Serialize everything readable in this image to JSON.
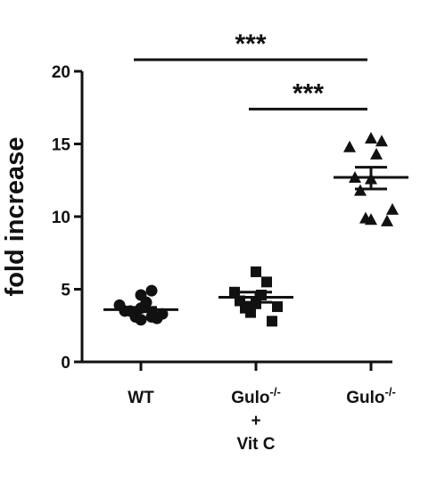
{
  "chart_data": {
    "type": "scatter",
    "ylabel": "fold increase",
    "ylim": [
      0,
      20
    ],
    "yticks": [
      0,
      5,
      10,
      15,
      20
    ],
    "categories": [
      {
        "lines": [
          "WT"
        ],
        "sup": ""
      },
      {
        "lines": [
          "Gulo",
          "+",
          "Vit C"
        ],
        "sup": "-/-"
      },
      {
        "lines": [
          "Gulo"
        ],
        "sup": "-/-"
      }
    ],
    "series": [
      {
        "category_index": 0,
        "marker": "circle",
        "values": [
          4.6,
          4.9,
          3.9,
          4.1,
          3.5,
          3.7,
          3.5,
          3.3,
          3.1,
          3.0,
          2.9,
          3.1
        ],
        "mean": 3.6,
        "sem": [
          3.45,
          3.75
        ]
      },
      {
        "category_index": 1,
        "marker": "square",
        "values": [
          6.2,
          5.5,
          4.8,
          4.6,
          4.2,
          4.0,
          3.7,
          3.8,
          3.4,
          2.8
        ],
        "mean": 4.45,
        "sem": [
          4.1,
          4.8
        ]
      },
      {
        "category_index": 2,
        "marker": "triangle",
        "values": [
          15.4,
          15.2,
          14.8,
          14.3,
          12.7,
          12.6,
          11.8,
          10.5,
          9.9,
          9.7,
          9.8
        ],
        "mean": 12.7,
        "sem": [
          11.9,
          13.4
        ]
      }
    ],
    "significance": [
      {
        "from": 0,
        "to": 2,
        "y": 20.8,
        "label": "***"
      },
      {
        "from": 1,
        "to": 2,
        "y": 17.4,
        "label": "***"
      }
    ]
  }
}
